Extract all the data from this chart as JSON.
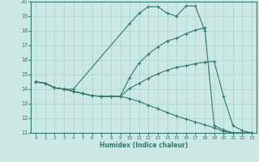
{
  "xlabel": "Humidex (Indice chaleur)",
  "ylabel": "",
  "xlim": [
    -0.5,
    23.5
  ],
  "ylim": [
    11,
    20
  ],
  "yticks": [
    11,
    12,
    13,
    14,
    15,
    16,
    17,
    18,
    19,
    20
  ],
  "xticks": [
    0,
    1,
    2,
    3,
    4,
    5,
    6,
    7,
    8,
    9,
    10,
    11,
    12,
    13,
    14,
    15,
    16,
    17,
    18,
    19,
    20,
    21,
    22,
    23
  ],
  "background_color": "#cbe8e3",
  "line_color": "#2d7a6e",
  "grid_color": "#a8d4cd",
  "line1_x": [
    0,
    1,
    2,
    3,
    4,
    10,
    11,
    12,
    13,
    14,
    15,
    16,
    17,
    18
  ],
  "line1_y": [
    14.5,
    14.4,
    14.1,
    14.0,
    14.0,
    18.5,
    19.2,
    19.65,
    19.65,
    19.2,
    19.0,
    19.7,
    19.7,
    18.0
  ],
  "line2_x": [
    0,
    1,
    2,
    3,
    4,
    5,
    6,
    7,
    8,
    9,
    10,
    11,
    12,
    13,
    14,
    15,
    16,
    17,
    18,
    19,
    20,
    21,
    22,
    23
  ],
  "line2_y": [
    14.5,
    14.4,
    14.1,
    14.0,
    13.85,
    13.7,
    13.55,
    13.5,
    13.5,
    13.5,
    14.05,
    14.4,
    14.75,
    15.05,
    15.3,
    15.5,
    15.6,
    15.75,
    15.85,
    15.9,
    13.5,
    11.5,
    11.15,
    11.0
  ],
  "line3_x": [
    0,
    1,
    2,
    3,
    4,
    5,
    6,
    7,
    8,
    9,
    10,
    11,
    12,
    13,
    14,
    15,
    16,
    17,
    18,
    19,
    20,
    21,
    22,
    23
  ],
  "line3_y": [
    14.5,
    14.4,
    14.1,
    14.0,
    13.85,
    13.7,
    13.55,
    13.5,
    13.5,
    13.5,
    14.8,
    15.8,
    16.4,
    16.9,
    17.3,
    17.5,
    17.8,
    18.05,
    18.2,
    11.5,
    11.2,
    11.0,
    11.0,
    11.0
  ],
  "line4_x": [
    0,
    1,
    2,
    3,
    4,
    5,
    6,
    7,
    8,
    9,
    10,
    11,
    12,
    13,
    14,
    15,
    16,
    17,
    18,
    19,
    20,
    21,
    22,
    23
  ],
  "line4_y": [
    14.5,
    14.4,
    14.1,
    14.0,
    13.85,
    13.7,
    13.55,
    13.5,
    13.5,
    13.5,
    13.35,
    13.15,
    12.9,
    12.65,
    12.4,
    12.15,
    11.95,
    11.75,
    11.55,
    11.35,
    11.1,
    11.0,
    11.0,
    11.0
  ]
}
